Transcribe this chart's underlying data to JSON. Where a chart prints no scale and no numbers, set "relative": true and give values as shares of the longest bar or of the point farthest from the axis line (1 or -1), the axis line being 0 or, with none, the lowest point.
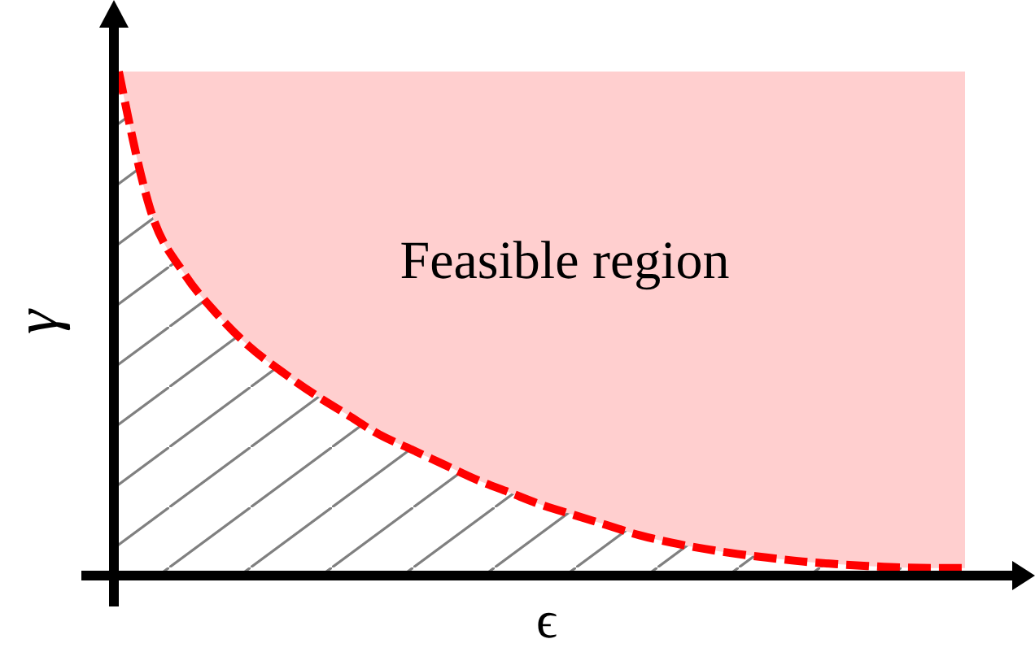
{
  "chart_data": {
    "type": "area",
    "relative": true,
    "xlabel": "ϵ",
    "ylabel": "γ",
    "annotations": [
      "Feasible region"
    ],
    "categories": [
      null,
      null,
      null,
      null,
      null,
      null,
      null,
      null,
      null,
      null,
      null,
      null,
      null,
      null,
      null,
      null,
      null,
      null,
      null,
      null,
      null,
      null,
      null,
      null,
      null,
      null,
      null
    ],
    "series": [
      {
        "color": "#ff0000",
        "line_style": "dashed",
        "values": [
          1,
          0.72,
          0.6,
          0.52,
          0.455,
          0.405,
          0.36,
          0.32,
          0.28,
          0.25,
          0.22,
          0.19,
          0.165,
          0.14,
          0.12,
          0.1,
          0.08,
          0.065,
          0.053,
          0.043,
          0.035,
          0.028,
          0.023,
          0.019,
          0.016,
          0.015,
          0.015
        ],
        "lower": [
          1,
          0.72,
          0.6,
          0.52,
          0.455,
          0.405,
          0.36,
          0.32,
          0.28,
          0.25,
          0.22,
          0.19,
          0.165,
          0.14,
          0.12,
          0.1,
          0.08,
          0.065,
          0.053,
          0.043,
          0.035,
          0.028,
          0.023,
          0.019,
          0.016,
          0.015,
          0.015
        ],
        "upper": [
          1,
          1,
          1,
          1,
          1,
          1,
          1,
          1,
          1,
          1,
          1,
          1,
          1,
          1,
          1,
          1,
          1,
          1,
          1,
          1,
          1,
          1,
          1,
          1,
          1,
          1,
          1
        ]
      }
    ]
  }
}
